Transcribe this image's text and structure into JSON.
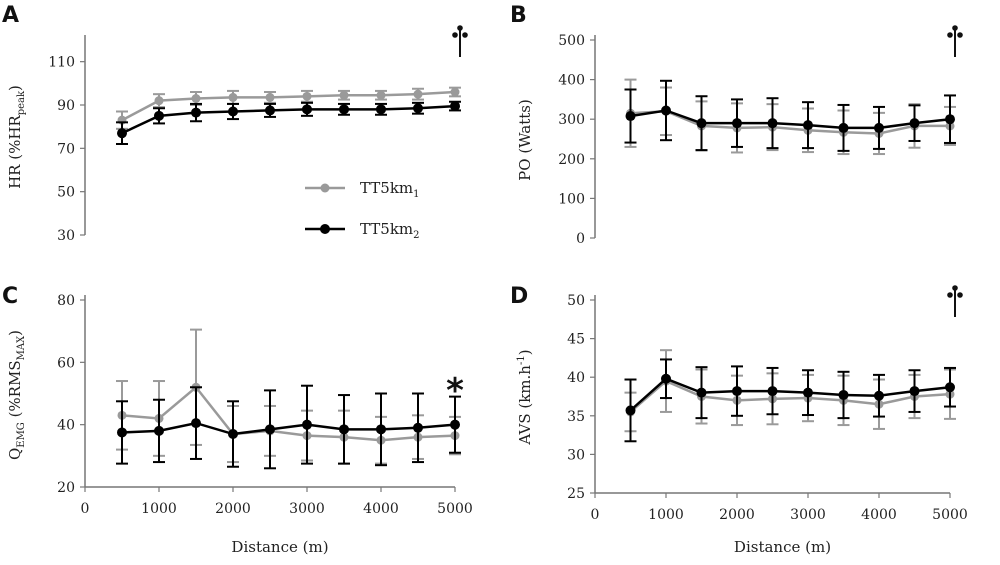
{
  "colors": {
    "tt1": "#9a9a9a",
    "tt2": "#000000",
    "axis": "#777777"
  },
  "legend": {
    "tt1_main": "TT5km",
    "tt1_sub": "1",
    "tt2_main": "TT5km",
    "tt2_sub": "2"
  },
  "chart_data": [
    {
      "panel": "A",
      "type": "line",
      "ylabel_main": "HR (%HR",
      "ylabel_sub": "peak",
      "ylabel_end": ")",
      "xlabel": "",
      "xlim": [
        0,
        5000
      ],
      "ylim": [
        30,
        120
      ],
      "yticks": [
        "110",
        "90",
        "70",
        "50",
        "30"
      ],
      "xticks": [],
      "annotation": "dagger",
      "series": [
        {
          "name": "TT5km1",
          "x": [
            500,
            1000,
            1500,
            2000,
            2500,
            3000,
            3500,
            4000,
            4500,
            5000
          ],
          "y": [
            83,
            92,
            93,
            93.5,
            93.5,
            94,
            94.5,
            94.5,
            95,
            96
          ],
          "err": [
            4,
            3,
            3,
            3,
            2.5,
            2.5,
            2,
            2,
            2.5,
            2
          ]
        },
        {
          "name": "TT5km2",
          "x": [
            500,
            1000,
            1500,
            2000,
            2500,
            3000,
            3500,
            4000,
            4500,
            5000
          ],
          "y": [
            77,
            85,
            86.5,
            87,
            87.5,
            88,
            88,
            88,
            88.5,
            89.5
          ],
          "err": [
            5,
            3.5,
            4,
            3.5,
            3,
            3,
            2.5,
            2.5,
            2.5,
            2
          ]
        }
      ]
    },
    {
      "panel": "B",
      "type": "line",
      "ylabel_main": "PO (Watts)",
      "ylabel_sub": "",
      "ylabel_end": "",
      "xlabel": "",
      "xlim": [
        0,
        5000
      ],
      "ylim": [
        0,
        500
      ],
      "yticks": [
        "500",
        "400",
        "300",
        "200",
        "100",
        "0"
      ],
      "xticks": [],
      "annotation": "dagger",
      "series": [
        {
          "name": "TT5km1",
          "x": [
            500,
            1000,
            1500,
            2000,
            2500,
            3000,
            3500,
            4000,
            4500,
            5000
          ],
          "y": [
            315,
            320,
            283,
            278,
            280,
            272,
            267,
            264,
            283,
            283
          ],
          "err": [
            85,
            60,
            62,
            62,
            58,
            55,
            55,
            52,
            55,
            48
          ]
        },
        {
          "name": "TT5km2",
          "x": [
            500,
            1000,
            1500,
            2000,
            2500,
            3000,
            3500,
            4000,
            4500,
            5000
          ],
          "y": [
            308,
            322,
            290,
            290,
            290,
            285,
            278,
            278,
            290,
            300
          ],
          "err": [
            67,
            75,
            68,
            60,
            63,
            58,
            58,
            53,
            45,
            60
          ]
        }
      ]
    },
    {
      "panel": "C",
      "type": "line",
      "ylabel_main": "Q",
      "ylabel_sub": "EMG",
      "ylabel_mid": " (%RMS",
      "ylabel_sub2": "MAX",
      "ylabel_end": ")",
      "xlabel": "Distance (m)",
      "xlim": [
        0,
        5000
      ],
      "ylim": [
        20,
        80
      ],
      "yticks": [
        "80",
        "60",
        "40",
        "20"
      ],
      "xticks": [
        "0",
        "1000",
        "2000",
        "3000",
        "4000",
        "5000"
      ],
      "annotation": "*",
      "series": [
        {
          "name": "TT5km1",
          "x": [
            500,
            1000,
            1500,
            2000,
            2500,
            3000,
            3500,
            4000,
            4500,
            5000
          ],
          "y": [
            43,
            42,
            52,
            37,
            38,
            36.5,
            36,
            35,
            36,
            36.5
          ],
          "err": [
            11,
            12,
            18.5,
            9,
            8,
            8,
            8.5,
            7.5,
            7,
            6
          ]
        },
        {
          "name": "TT5km2",
          "x": [
            500,
            1000,
            1500,
            2000,
            2500,
            3000,
            3500,
            4000,
            4500,
            5000
          ],
          "y": [
            37.5,
            38,
            40.5,
            37,
            38.5,
            40,
            38.5,
            38.5,
            39,
            40
          ],
          "err": [
            10,
            10,
            11.5,
            10.5,
            12.5,
            12.5,
            11,
            11.5,
            11,
            9
          ]
        }
      ]
    },
    {
      "panel": "D",
      "type": "line",
      "ylabel_main": "AVS (km.h",
      "ylabel_sup": "-1",
      "ylabel_end": ")",
      "xlabel": "Distance (m)",
      "xlim": [
        0,
        5000
      ],
      "ylim": [
        25,
        50
      ],
      "yticks": [
        "50",
        "45",
        "40",
        "35",
        "30",
        "25"
      ],
      "xticks": [
        "0",
        "1000",
        "2000",
        "3000",
        "4000",
        "5000"
      ],
      "annotation": "dagger",
      "series": [
        {
          "name": "TT5km1",
          "x": [
            500,
            1000,
            1500,
            2000,
            2500,
            3000,
            3500,
            4000,
            4500,
            5000
          ],
          "y": [
            35.5,
            39.5,
            37.5,
            37,
            37.2,
            37.3,
            37,
            36.5,
            37.5,
            37.8
          ],
          "err": [
            2.5,
            4,
            3.5,
            3.2,
            3.3,
            3,
            3.2,
            3.2,
            2.8,
            3.2
          ]
        },
        {
          "name": "TT5km2",
          "x": [
            500,
            1000,
            1500,
            2000,
            2500,
            3000,
            3500,
            4000,
            4500,
            5000
          ],
          "y": [
            35.7,
            39.8,
            38,
            38.2,
            38.2,
            38,
            37.7,
            37.6,
            38.2,
            38.7
          ],
          "err": [
            4,
            2.5,
            3.3,
            3.2,
            3,
            2.9,
            3,
            2.7,
            2.7,
            2.5
          ]
        }
      ]
    }
  ]
}
